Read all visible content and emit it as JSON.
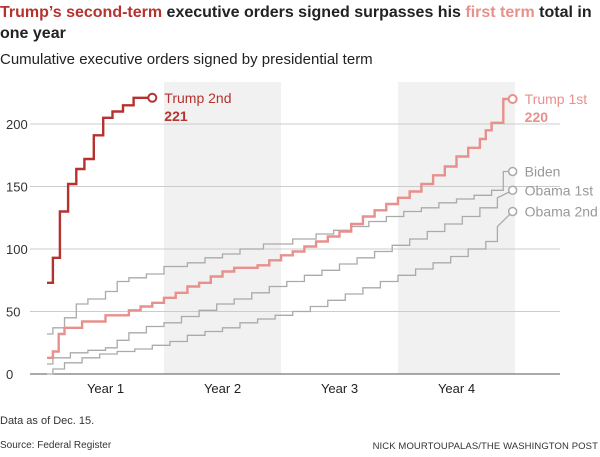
{
  "headline": {
    "part1": "Trump’s second-term",
    "part2": " executive orders signed surpasses his ",
    "part3": "first term",
    "part4": " total in one year"
  },
  "subtitle": "Cumulative executive orders signed by presidential term",
  "footer": {
    "note": "Data as of Dec. 15.",
    "source": "Source: Federal Register",
    "credit": "NICK MOURTOUPALAS/THE WASHINGTON POST"
  },
  "chart_data": {
    "type": "line",
    "title": "Cumulative executive orders signed by presidential term",
    "xlabel": "",
    "ylabel": "",
    "x_unit": "year of term",
    "xlim": [
      0,
      4
    ],
    "ylim": [
      0,
      230
    ],
    "yticks": [
      0,
      50,
      100,
      150,
      200
    ],
    "xcategories": [
      "Year 1",
      "Year 2",
      "Year 3",
      "Year 4"
    ],
    "shaded_years": [
      "Year 2",
      "Year 4"
    ],
    "grid": true,
    "legend": "direct labels at line ends",
    "series": [
      {
        "name": "Trump 2nd",
        "end_label": "221",
        "color": "#b5322f",
        "highlight": true,
        "points": [
          [
            0.0,
            73
          ],
          [
            0.05,
            73
          ],
          [
            0.05,
            93
          ],
          [
            0.11,
            93
          ],
          [
            0.11,
            130
          ],
          [
            0.18,
            130
          ],
          [
            0.18,
            152
          ],
          [
            0.25,
            152
          ],
          [
            0.25,
            164
          ],
          [
            0.32,
            164
          ],
          [
            0.32,
            172
          ],
          [
            0.4,
            172
          ],
          [
            0.4,
            191
          ],
          [
            0.48,
            191
          ],
          [
            0.48,
            205
          ],
          [
            0.56,
            205
          ],
          [
            0.56,
            210
          ],
          [
            0.65,
            210
          ],
          [
            0.65,
            215
          ],
          [
            0.74,
            215
          ],
          [
            0.74,
            221
          ],
          [
            0.9,
            221
          ]
        ]
      },
      {
        "name": "Trump 1st",
        "end_label": "220",
        "color": "#e8908b",
        "highlight": true,
        "points": [
          [
            0.0,
            13
          ],
          [
            0.05,
            13
          ],
          [
            0.05,
            18
          ],
          [
            0.1,
            18
          ],
          [
            0.1,
            32
          ],
          [
            0.15,
            32
          ],
          [
            0.15,
            37
          ],
          [
            0.3,
            37
          ],
          [
            0.3,
            42
          ],
          [
            0.5,
            42
          ],
          [
            0.5,
            47
          ],
          [
            0.7,
            47
          ],
          [
            0.7,
            51
          ],
          [
            0.8,
            51
          ],
          [
            0.8,
            54
          ],
          [
            0.9,
            54
          ],
          [
            0.9,
            57
          ],
          [
            1.0,
            57
          ],
          [
            1.0,
            61
          ],
          [
            1.1,
            61
          ],
          [
            1.1,
            65
          ],
          [
            1.2,
            65
          ],
          [
            1.2,
            70
          ],
          [
            1.3,
            70
          ],
          [
            1.3,
            73
          ],
          [
            1.4,
            73
          ],
          [
            1.4,
            78
          ],
          [
            1.5,
            78
          ],
          [
            1.5,
            82
          ],
          [
            1.6,
            82
          ],
          [
            1.6,
            85
          ],
          [
            1.8,
            85
          ],
          [
            1.8,
            87
          ],
          [
            1.9,
            87
          ],
          [
            1.9,
            91
          ],
          [
            2.0,
            91
          ],
          [
            2.0,
            95
          ],
          [
            2.1,
            95
          ],
          [
            2.1,
            98
          ],
          [
            2.2,
            98
          ],
          [
            2.2,
            102
          ],
          [
            2.3,
            102
          ],
          [
            2.3,
            106
          ],
          [
            2.4,
            106
          ],
          [
            2.4,
            110
          ],
          [
            2.5,
            110
          ],
          [
            2.5,
            114
          ],
          [
            2.6,
            114
          ],
          [
            2.6,
            120
          ],
          [
            2.7,
            120
          ],
          [
            2.7,
            126
          ],
          [
            2.8,
            126
          ],
          [
            2.8,
            131
          ],
          [
            2.9,
            131
          ],
          [
            2.9,
            136
          ],
          [
            3.0,
            136
          ],
          [
            3.0,
            141
          ],
          [
            3.1,
            141
          ],
          [
            3.1,
            146
          ],
          [
            3.2,
            146
          ],
          [
            3.2,
            152
          ],
          [
            3.3,
            152
          ],
          [
            3.3,
            159
          ],
          [
            3.4,
            159
          ],
          [
            3.4,
            166
          ],
          [
            3.5,
            166
          ],
          [
            3.5,
            174
          ],
          [
            3.6,
            174
          ],
          [
            3.6,
            181
          ],
          [
            3.7,
            181
          ],
          [
            3.7,
            188
          ],
          [
            3.75,
            188
          ],
          [
            3.75,
            195
          ],
          [
            3.8,
            195
          ],
          [
            3.8,
            201
          ],
          [
            3.9,
            201
          ],
          [
            3.9,
            220
          ],
          [
            3.98,
            220
          ]
        ]
      },
      {
        "name": "Biden",
        "end_label": "",
        "color": "#aaaaaa",
        "highlight": false,
        "points": [
          [
            0.0,
            32
          ],
          [
            0.05,
            32
          ],
          [
            0.05,
            37
          ],
          [
            0.15,
            37
          ],
          [
            0.15,
            45
          ],
          [
            0.25,
            45
          ],
          [
            0.25,
            56
          ],
          [
            0.35,
            56
          ],
          [
            0.35,
            60
          ],
          [
            0.5,
            60
          ],
          [
            0.5,
            66
          ],
          [
            0.6,
            66
          ],
          [
            0.6,
            74
          ],
          [
            0.7,
            74
          ],
          [
            0.7,
            77
          ],
          [
            0.85,
            77
          ],
          [
            0.85,
            80
          ],
          [
            1.0,
            80
          ],
          [
            1.0,
            86
          ],
          [
            1.2,
            86
          ],
          [
            1.2,
            89
          ],
          [
            1.35,
            89
          ],
          [
            1.35,
            93
          ],
          [
            1.5,
            93
          ],
          [
            1.5,
            96
          ],
          [
            1.65,
            96
          ],
          [
            1.65,
            100
          ],
          [
            1.85,
            100
          ],
          [
            1.85,
            104
          ],
          [
            2.1,
            104
          ],
          [
            2.1,
            108
          ],
          [
            2.3,
            108
          ],
          [
            2.3,
            112
          ],
          [
            2.45,
            112
          ],
          [
            2.45,
            115
          ],
          [
            2.6,
            115
          ],
          [
            2.6,
            118
          ],
          [
            2.75,
            118
          ],
          [
            2.75,
            122
          ],
          [
            2.9,
            122
          ],
          [
            2.9,
            126
          ],
          [
            3.05,
            126
          ],
          [
            3.05,
            130
          ],
          [
            3.2,
            130
          ],
          [
            3.2,
            133
          ],
          [
            3.35,
            133
          ],
          [
            3.35,
            137
          ],
          [
            3.5,
            137
          ],
          [
            3.5,
            140
          ],
          [
            3.65,
            140
          ],
          [
            3.65,
            143
          ],
          [
            3.8,
            143
          ],
          [
            3.8,
            147
          ],
          [
            3.9,
            147
          ],
          [
            3.9,
            162
          ],
          [
            3.98,
            162
          ]
        ]
      },
      {
        "name": "Obama 1st",
        "end_label": "",
        "color": "#aaaaaa",
        "highlight": false,
        "points": [
          [
            0.0,
            8
          ],
          [
            0.05,
            8
          ],
          [
            0.05,
            13
          ],
          [
            0.2,
            13
          ],
          [
            0.2,
            17
          ],
          [
            0.35,
            17
          ],
          [
            0.35,
            19
          ],
          [
            0.5,
            19
          ],
          [
            0.5,
            21
          ],
          [
            0.6,
            21
          ],
          [
            0.6,
            27
          ],
          [
            0.7,
            27
          ],
          [
            0.7,
            33
          ],
          [
            0.85,
            33
          ],
          [
            0.85,
            38
          ],
          [
            1.0,
            38
          ],
          [
            1.0,
            41
          ],
          [
            1.15,
            41
          ],
          [
            1.15,
            46
          ],
          [
            1.3,
            46
          ],
          [
            1.3,
            51
          ],
          [
            1.45,
            51
          ],
          [
            1.45,
            56
          ],
          [
            1.6,
            56
          ],
          [
            1.6,
            60
          ],
          [
            1.75,
            60
          ],
          [
            1.75,
            65
          ],
          [
            1.9,
            65
          ],
          [
            1.9,
            70
          ],
          [
            2.05,
            70
          ],
          [
            2.05,
            74
          ],
          [
            2.2,
            74
          ],
          [
            2.2,
            79
          ],
          [
            2.35,
            79
          ],
          [
            2.35,
            83
          ],
          [
            2.5,
            83
          ],
          [
            2.5,
            88
          ],
          [
            2.65,
            88
          ],
          [
            2.65,
            93
          ],
          [
            2.8,
            93
          ],
          [
            2.8,
            98
          ],
          [
            2.95,
            98
          ],
          [
            2.95,
            103
          ],
          [
            3.1,
            103
          ],
          [
            3.1,
            108
          ],
          [
            3.25,
            108
          ],
          [
            3.25,
            114
          ],
          [
            3.4,
            114
          ],
          [
            3.4,
            120
          ],
          [
            3.55,
            120
          ],
          [
            3.55,
            126
          ],
          [
            3.7,
            126
          ],
          [
            3.7,
            133
          ],
          [
            3.85,
            133
          ],
          [
            3.85,
            141
          ],
          [
            3.98,
            147
          ]
        ]
      },
      {
        "name": "Obama 2nd",
        "end_label": "",
        "color": "#aaaaaa",
        "highlight": false,
        "points": [
          [
            0.0,
            0
          ],
          [
            0.05,
            0
          ],
          [
            0.05,
            4
          ],
          [
            0.15,
            4
          ],
          [
            0.15,
            9
          ],
          [
            0.3,
            9
          ],
          [
            0.3,
            13
          ],
          [
            0.45,
            13
          ],
          [
            0.45,
            16
          ],
          [
            0.6,
            16
          ],
          [
            0.6,
            18
          ],
          [
            0.75,
            18
          ],
          [
            0.75,
            20
          ],
          [
            0.9,
            20
          ],
          [
            0.9,
            23
          ],
          [
            1.05,
            23
          ],
          [
            1.05,
            26
          ],
          [
            1.2,
            26
          ],
          [
            1.2,
            31
          ],
          [
            1.35,
            31
          ],
          [
            1.35,
            34
          ],
          [
            1.5,
            34
          ],
          [
            1.5,
            37
          ],
          [
            1.65,
            37
          ],
          [
            1.65,
            41
          ],
          [
            1.8,
            41
          ],
          [
            1.8,
            44
          ],
          [
            1.95,
            44
          ],
          [
            1.95,
            47
          ],
          [
            2.1,
            47
          ],
          [
            2.1,
            50
          ],
          [
            2.25,
            50
          ],
          [
            2.25,
            54
          ],
          [
            2.4,
            54
          ],
          [
            2.4,
            59
          ],
          [
            2.55,
            59
          ],
          [
            2.55,
            64
          ],
          [
            2.7,
            64
          ],
          [
            2.7,
            69
          ],
          [
            2.85,
            69
          ],
          [
            2.85,
            74
          ],
          [
            3.0,
            74
          ],
          [
            3.0,
            79
          ],
          [
            3.15,
            79
          ],
          [
            3.15,
            84
          ],
          [
            3.3,
            84
          ],
          [
            3.3,
            89
          ],
          [
            3.45,
            89
          ],
          [
            3.45,
            94
          ],
          [
            3.6,
            94
          ],
          [
            3.6,
            100
          ],
          [
            3.75,
            100
          ],
          [
            3.75,
            106
          ],
          [
            3.85,
            106
          ],
          [
            3.85,
            118
          ],
          [
            3.98,
            130
          ]
        ]
      }
    ]
  }
}
